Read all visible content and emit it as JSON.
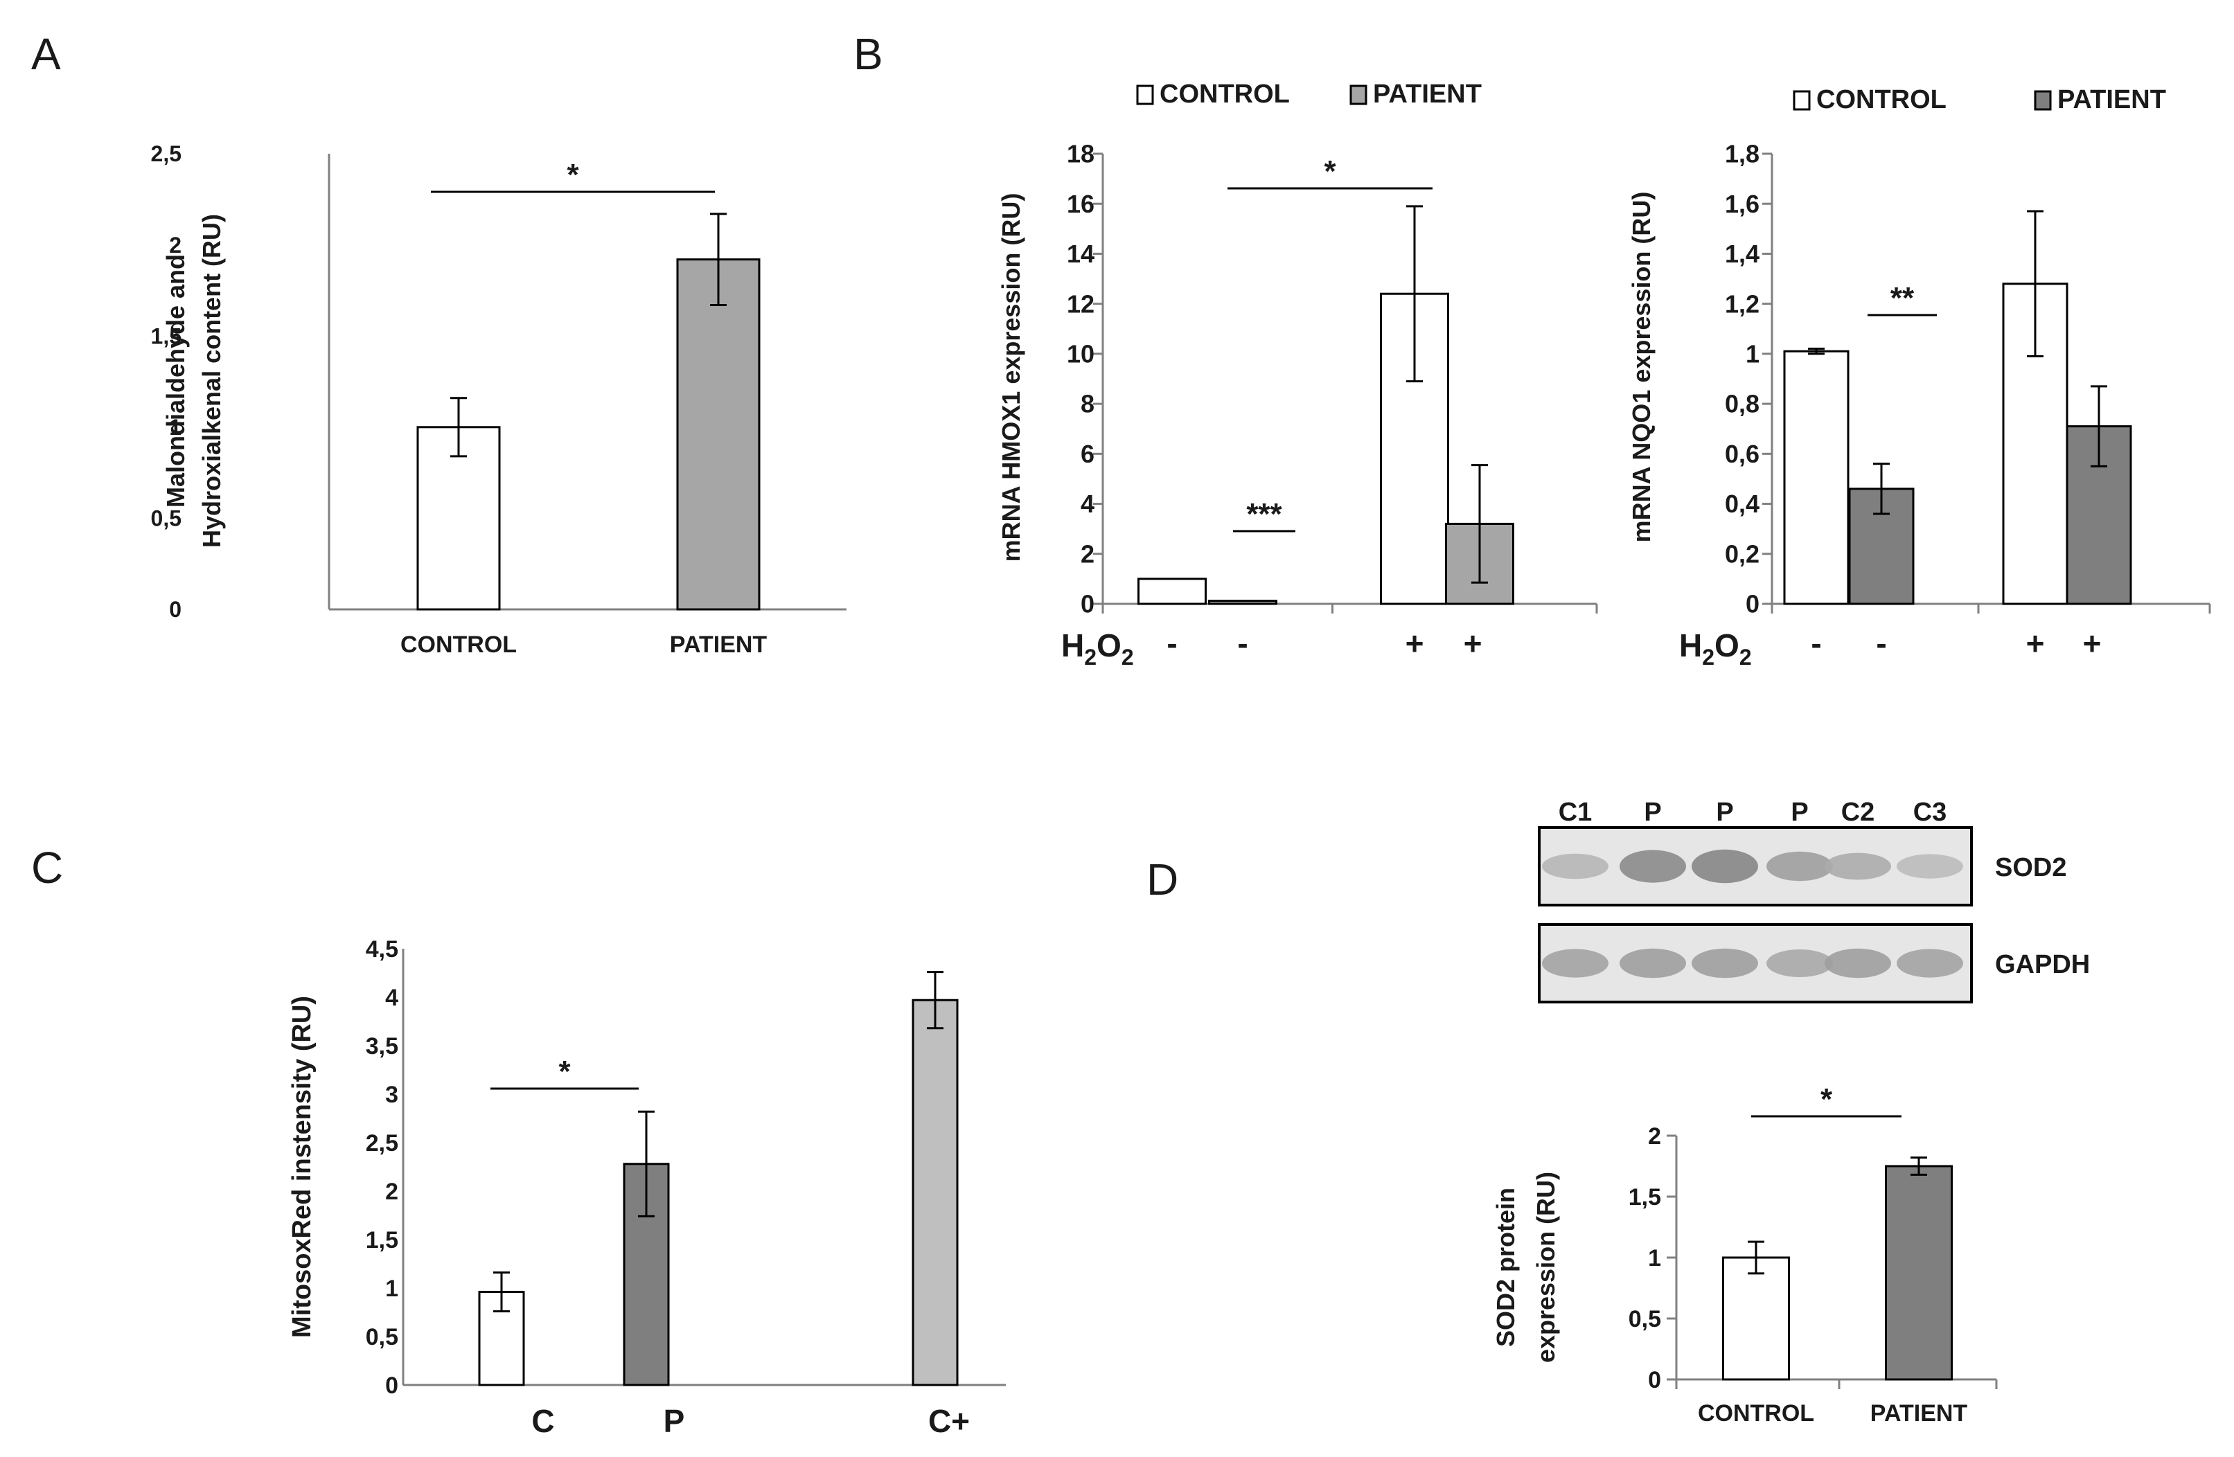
{
  "panel_labels": {
    "a": "A",
    "b": "B",
    "c": "C",
    "d": "D"
  },
  "common": {
    "legend_control": "CONTROL",
    "legend_patient": "PATIENT",
    "h2o2_main": "H",
    "h2o2_sub1": "2",
    "h2o2_o": "O",
    "h2o2_sub2": "2",
    "colors": {
      "control": "#ffffff",
      "patient_light": "#a6a6a6",
      "patient_dark": "#7f7f7f",
      "positive_control": "#bfbfbf",
      "axis": "#808080"
    }
  },
  "chart_data": [
    {
      "id": "A",
      "type": "bar",
      "title": "",
      "ylabel_line1": "Malondialdehyde  and",
      "ylabel_line2": "Hydroxialkenal content (RU)",
      "xlabel": "",
      "ylim": [
        0,
        2.5
      ],
      "ytick_labels": [
        "0",
        "0,5",
        "1",
        "1,5",
        "2",
        "2,5"
      ],
      "categories": [
        "CONTROL",
        "PATIENT"
      ],
      "values": [
        1.0,
        1.92
      ],
      "errors": [
        0.16,
        0.25
      ],
      "significance": [
        {
          "label": "*",
          "between": [
            0,
            1
          ]
        }
      ]
    },
    {
      "id": "B1",
      "type": "bar",
      "title": "",
      "ylabel": "mRNA HMOX1 expression (RU)",
      "ylim": [
        0,
        18
      ],
      "ytick_labels": [
        "0",
        "2",
        "4",
        "6",
        "8",
        "10",
        "12",
        "14",
        "16",
        "18"
      ],
      "groups": [
        "-",
        "+"
      ],
      "x_treatment_labels": [
        "-",
        "-",
        "+",
        "+"
      ],
      "series": [
        {
          "name": "CONTROL",
          "values": [
            1.0,
            12.4
          ],
          "errors": [
            0,
            3.5
          ]
        },
        {
          "name": "PATIENT",
          "values": [
            0.12,
            3.2
          ],
          "errors": [
            0,
            2.35
          ]
        }
      ],
      "significance": [
        {
          "label": "***",
          "between": [
            "CONTROL -",
            "PATIENT -"
          ]
        },
        {
          "label": "*",
          "between": [
            "CONTROL -",
            "CONTROL +"
          ]
        }
      ],
      "legend": "top"
    },
    {
      "id": "B2",
      "type": "bar",
      "title": "",
      "ylabel": "mRNA NQO1 expression (RU)",
      "ylim": [
        0,
        1.8
      ],
      "ytick_labels": [
        "0",
        "0,2",
        "0,4",
        "0,6",
        "0,8",
        "1",
        "1,2",
        "1,4",
        "1,6",
        "1,8"
      ],
      "groups": [
        "-",
        "+"
      ],
      "x_treatment_labels": [
        "-",
        "-",
        "+",
        "+"
      ],
      "series": [
        {
          "name": "CONTROL",
          "values": [
            1.01,
            1.28
          ],
          "errors": [
            0.01,
            0.29
          ]
        },
        {
          "name": "PATIENT",
          "values": [
            0.46,
            0.71
          ],
          "errors": [
            0.1,
            0.16
          ]
        }
      ],
      "significance": [
        {
          "label": "**",
          "between": [
            "CONTROL -",
            "PATIENT -"
          ]
        }
      ],
      "legend": "top"
    },
    {
      "id": "C",
      "type": "bar",
      "title": "",
      "ylabel": "MitosoxRed instensity (RU)",
      "ylim": [
        0,
        4.5
      ],
      "ytick_labels": [
        "0",
        "0,5",
        "1",
        "1,5",
        "2",
        "2,5",
        "3",
        "3,5",
        "4",
        "4,5"
      ],
      "categories": [
        "C",
        "P",
        "C+"
      ],
      "values": [
        0.96,
        2.28,
        3.97
      ],
      "errors": [
        0.2,
        0.54,
        0.29
      ],
      "significance": [
        {
          "label": "*",
          "between": [
            0,
            1
          ]
        }
      ]
    },
    {
      "id": "D",
      "type": "bar",
      "title": "",
      "ylabel_line1": "SOD2  protein",
      "ylabel_line2": "expression (RU)",
      "ylim": [
        0,
        2
      ],
      "ytick_labels": [
        "0",
        "0,5",
        "1",
        "1,5",
        "2"
      ],
      "categories": [
        "CONTROL",
        "PATIENT"
      ],
      "values": [
        1.0,
        1.75
      ],
      "errors": [
        0.13,
        0.07
      ],
      "significance": [
        {
          "label": "*",
          "between": [
            0,
            1
          ]
        }
      ]
    }
  ],
  "blot": {
    "lanes": [
      "C1",
      "P",
      "P",
      "P",
      "C2",
      "C3"
    ],
    "rows": [
      "SOD2",
      "GAPDH"
    ],
    "sod2_intensity": [
      0.35,
      0.8,
      0.85,
      0.6,
      0.45,
      0.3
    ],
    "gapdh_intensity": [
      0.55,
      0.6,
      0.6,
      0.5,
      0.6,
      0.55
    ]
  }
}
